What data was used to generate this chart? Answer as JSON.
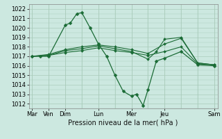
{
  "bg_color": "#cce8e0",
  "grid_color": "#aaccbb",
  "line_color": "#1a6b35",
  "title": "Pression niveau de la mer( hPa )",
  "ylim": [
    1011.5,
    1022.5
  ],
  "xlim": [
    -0.2,
    11.2
  ],
  "lines": [
    {
      "x": [
        0,
        0.5,
        1,
        2,
        2.3,
        2.7,
        3,
        3.5,
        4,
        4.5,
        5,
        5.5,
        6,
        6.3,
        6.7,
        7,
        7.5,
        8,
        9,
        10,
        11
      ],
      "y": [
        1017.0,
        1017.0,
        1017.0,
        1020.3,
        1020.5,
        1021.5,
        1021.6,
        1020.0,
        1018.3,
        1017.0,
        1015.0,
        1013.3,
        1012.8,
        1013.0,
        1011.8,
        1013.5,
        1016.5,
        1016.8,
        1017.5,
        1016.1,
        1016.0
      ],
      "marker": true
    },
    {
      "x": [
        0,
        1,
        2,
        3,
        4,
        5,
        6,
        7,
        8,
        9,
        10,
        11
      ],
      "y": [
        1017.0,
        1017.1,
        1017.4,
        1017.6,
        1017.9,
        1017.6,
        1017.4,
        1017.1,
        1017.5,
        1018.0,
        1016.2,
        1016.1
      ],
      "marker": false
    },
    {
      "x": [
        0,
        1,
        2,
        3,
        4,
        5,
        6,
        7,
        8,
        9,
        10,
        11
      ],
      "y": [
        1017.0,
        1017.2,
        1017.7,
        1018.0,
        1018.2,
        1018.0,
        1017.7,
        1017.3,
        1018.3,
        1018.9,
        1016.3,
        1016.1
      ],
      "marker": false
    },
    {
      "x": [
        0,
        1,
        2,
        3,
        4,
        5,
        6,
        7,
        7.5,
        8,
        9,
        10,
        11
      ],
      "y": [
        1017.0,
        1017.1,
        1017.6,
        1017.8,
        1018.1,
        1017.8,
        1017.5,
        1016.7,
        1017.5,
        1018.8,
        1019.0,
        1016.3,
        1016.1
      ],
      "marker": false
    }
  ],
  "xtick_positions": [
    0,
    1,
    2,
    4,
    6,
    8,
    11
  ],
  "xtick_labels": [
    "Mar",
    "Ven",
    "Dim",
    "Lun",
    "Mer",
    "Jeu",
    "Sam"
  ],
  "ytick_step": 1,
  "label_fontsize": 6,
  "xlabel_fontsize": 7
}
